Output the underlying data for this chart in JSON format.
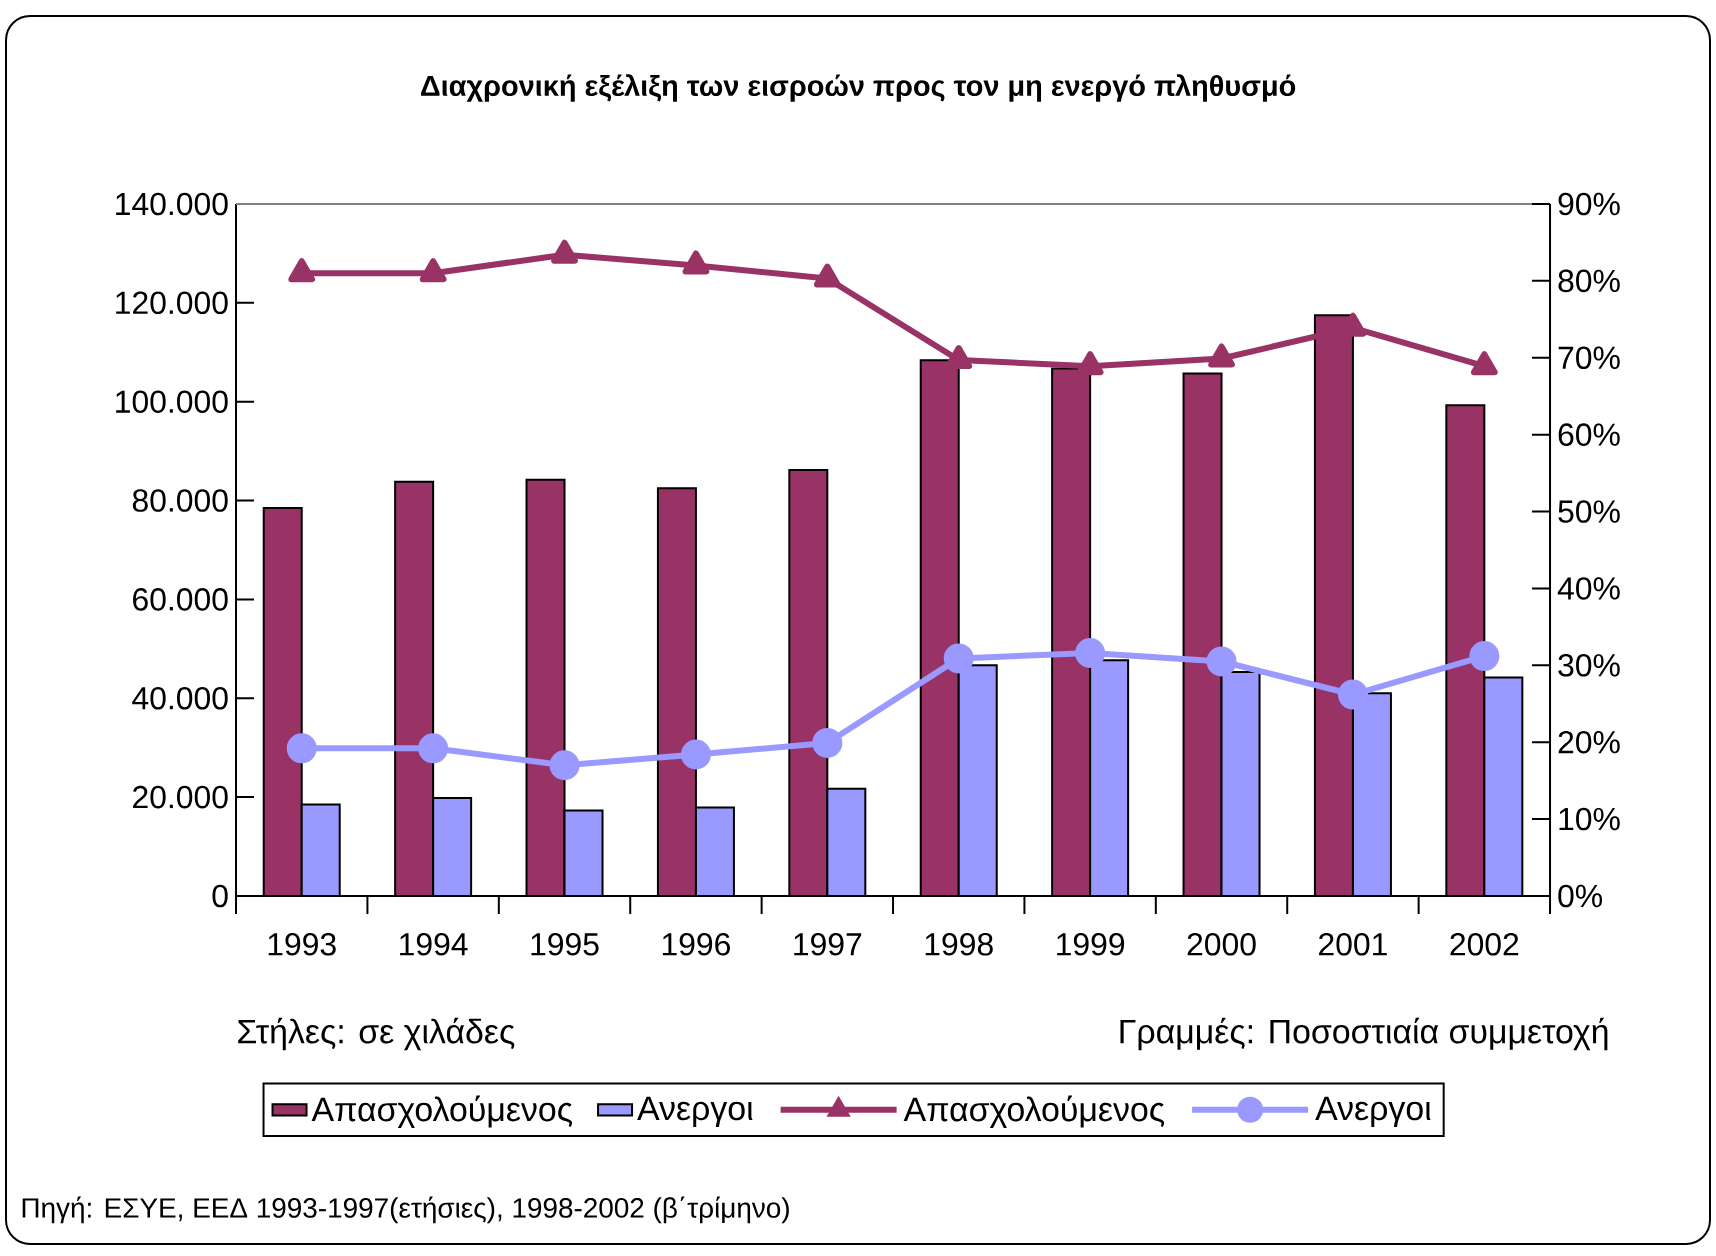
{
  "chart_data": {
    "type": "bar",
    "title": "Διαχρονική εξέλιξη των εισροών προς τον μη ενεργό πληθυσμό",
    "categories": [
      "1993",
      "1994",
      "1995",
      "1996",
      "1997",
      "1998",
      "1999",
      "2000",
      "2001",
      "2002"
    ],
    "series": [
      {
        "name": "Απασχολούμενος",
        "color": "#993366",
        "values": [
          78500,
          83800,
          84200,
          82500,
          86200,
          108400,
          106700,
          105700,
          117500,
          99300
        ]
      },
      {
        "name": "Ανεργοι",
        "color": "#9999ff",
        "values": [
          18500,
          19800,
          17300,
          17900,
          21700,
          46700,
          47700,
          45300,
          41000,
          44200
        ]
      },
      {
        "name": "Απασχολούμενος",
        "type": "line",
        "axis": "y2",
        "marker": "triangle",
        "color": "#993366",
        "values": [
          81.0,
          81.0,
          83.4,
          82.0,
          80.3,
          69.7,
          68.9,
          69.9,
          73.9,
          68.9
        ]
      },
      {
        "name": "Ανεργοι",
        "type": "line",
        "axis": "y2",
        "marker": "circle",
        "color": "#9999ff",
        "values": [
          19.2,
          19.2,
          17.0,
          18.4,
          19.9,
          30.9,
          31.6,
          30.5,
          26.2,
          31.2
        ]
      }
    ],
    "ylim": [
      0,
      140000
    ],
    "yticks": [
      0,
      {
        "value": 20000,
        "label": "20.000"
      },
      {
        "value": 40000,
        "label": "40.000"
      },
      {
        "value": 60000,
        "label": "60.000"
      },
      {
        "value": 80000,
        "label": "80.000"
      },
      {
        "value": 100000,
        "label": "100.000"
      },
      {
        "value": 120000,
        "label": "120.000"
      },
      {
        "value": 140000,
        "label": "140.000"
      }
    ],
    "y2lim": [
      0,
      90
    ],
    "y2ticks": [
      {
        "value": 0,
        "label": "0%"
      },
      {
        "value": 10,
        "label": "10%"
      },
      {
        "value": 20,
        "label": "20%"
      },
      {
        "value": 30,
        "label": "30%"
      },
      {
        "value": 40,
        "label": "40%"
      },
      {
        "value": 50,
        "label": "50%"
      },
      {
        "value": 60,
        "label": "60%"
      },
      {
        "value": 70,
        "label": "70%"
      },
      {
        "value": 80,
        "label": "80%"
      },
      {
        "value": 90,
        "label": "90%"
      }
    ],
    "legend": "bottom",
    "annotations": [
      "Στήλες: σε χιλάδες",
      "Γραμμές: Ποσοστιαία συμμετοχή",
      "Πηγή: ΕΣΥΕ, ΕΕΔ 1993-1997(ετήσιες), 1998-2002 (β΄τρίμηνο)"
    ]
  }
}
